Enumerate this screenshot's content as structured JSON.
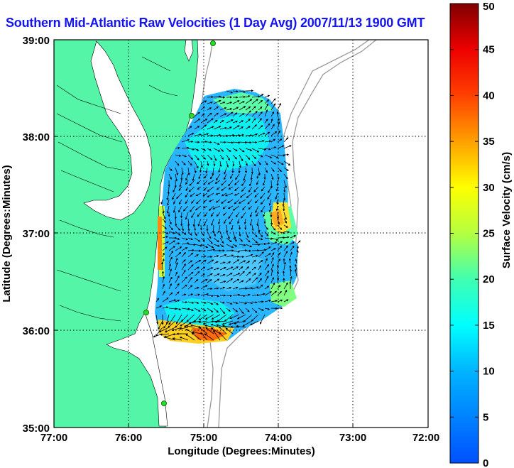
{
  "map": {
    "title": "Southern Mid-Atlantic Raw Velocities (1 Day Avg) 2007/11/13 1900 GMT",
    "xlabel": "Longitude (Degrees:Minutes)",
    "ylabel": "Latitude (Degrees:Minutes)",
    "x_ticks": [
      "77:00",
      "76:00",
      "75:00",
      "74:00",
      "73:00",
      "72:00"
    ],
    "y_ticks": [
      "39:00",
      "38:00",
      "37:00",
      "36:00",
      "35:00"
    ],
    "grid": "dotted",
    "colors": {
      "land": "#55f5a8",
      "title": "#1515f0"
    }
  },
  "colorbar": {
    "label": "Surface Velocity (cm/s)",
    "ticks": [
      "0",
      "5",
      "10",
      "15",
      "20",
      "25",
      "30",
      "35",
      "40",
      "45",
      "50"
    ],
    "range": [
      0,
      50
    ],
    "colormap": "jet"
  },
  "chart_data": {
    "type": "heatmap",
    "title": "Southern Mid-Atlantic Raw Velocities (1 Day Avg) 2007/11/13 1900 GMT",
    "xlabel": "Longitude (Degrees:Minutes)",
    "ylabel": "Latitude (Degrees:Minutes)",
    "xlim": [
      -77,
      -72
    ],
    "ylim": [
      35,
      39
    ],
    "value_label": "Surface Velocity (cm/s)",
    "value_range": [
      0,
      50
    ],
    "legend_placement": "right"
  }
}
